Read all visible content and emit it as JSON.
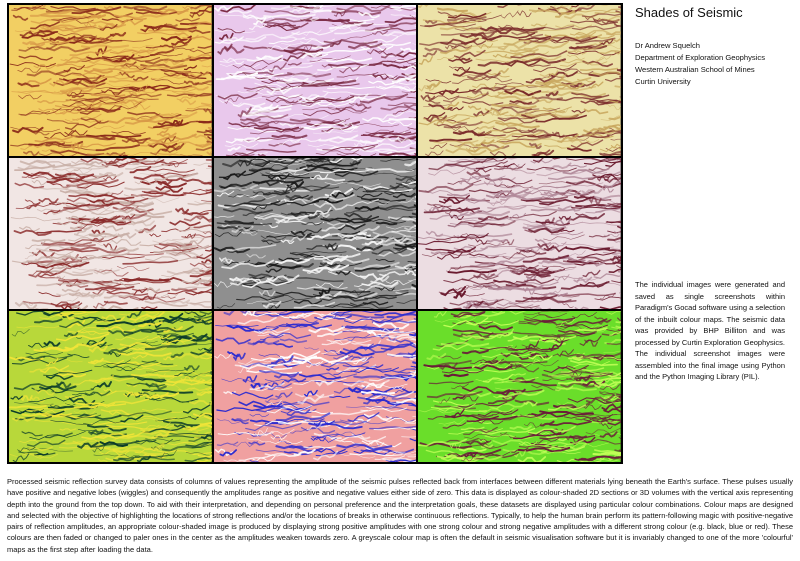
{
  "panel": {
    "title": "Shades of Seismic",
    "author_lines": [
      "Dr Andrew Squelch",
      "Department of Exploration Geophysics",
      "Western Australian School of Mines",
      "Curtin University"
    ],
    "side_text": "The individual images were generated and saved as single screenshots within Paradigm's Gocad software using a selection of the inbuilt colour maps. The seismic data was provided by BHP Billiton and was processed by Curtin Exploration Geophysics. The individual screenshot images were assembled into the final image using Python and the Python Imaging Library (PIL).",
    "bottom_text": "Processed seismic reflection survey data consists of columns of values representing the amplitude of the seismic pulses reflected back from interfaces between different materials lying beneath the Earth's surface. These pulses usually have positive and negative lobes (wiggles) and consequently the amplitudes range as positive and negative values either side of zero. This data is displayed as colour-shaded 2D sections or 3D volumes with the vertical axis representing depth into the ground from the top down. To aid with their interpretation, and depending on personal preference and the interpretation goals, these datasets are displayed using particular colour combinations. Colour maps are designed and selected with the objective of highlighting the locations of strong reflections and/or the locations of breaks in otherwise continuous reflections. Typically, to help the human brain perform its pattern-following magic with positive-negative pairs of reflection amplitudes, an appropriate colour-shaded image is produced by displaying strong positive amplitudes with one strong colour and strong negative amplitudes with a different strong colour (e.g. black, blue or red). These colours are then faded or changed to paler ones in the center as the amplitudes weaken towards zero. A greyscale colour map is often the default in seismic visualisation software but it is invariably changed to one of the more 'colourful' maps as the first step after loading the data."
  },
  "tiles": [
    {
      "base": "#f2cf63",
      "c1": "#8a2a1a",
      "c2": "#d89a48"
    },
    {
      "base": "#e9c8ec",
      "c1": "#7a2a44",
      "c2": "#ffffff"
    },
    {
      "base": "#ece2a8",
      "c1": "#7a2a2a",
      "c2": "#c9a860"
    },
    {
      "base": "#f1e6e4",
      "c1": "#8a2a2a",
      "c2": "#c9b0a8"
    },
    {
      "base": "#8f8f8f",
      "c1": "#1a1a1a",
      "c2": "#f4f4f4"
    },
    {
      "base": "#ecdde2",
      "c1": "#6a1a2e",
      "c2": "#b08898"
    },
    {
      "base": "#b8d83a",
      "c1": "#0a3a2a",
      "c2": "#f0e438"
    },
    {
      "base": "#f0a0a0",
      "c1": "#2a2ad0",
      "c2": "#ffffff"
    },
    {
      "base": "#6ade2a",
      "c1": "#6a1a3a",
      "c2": "#c2ff58"
    }
  ]
}
